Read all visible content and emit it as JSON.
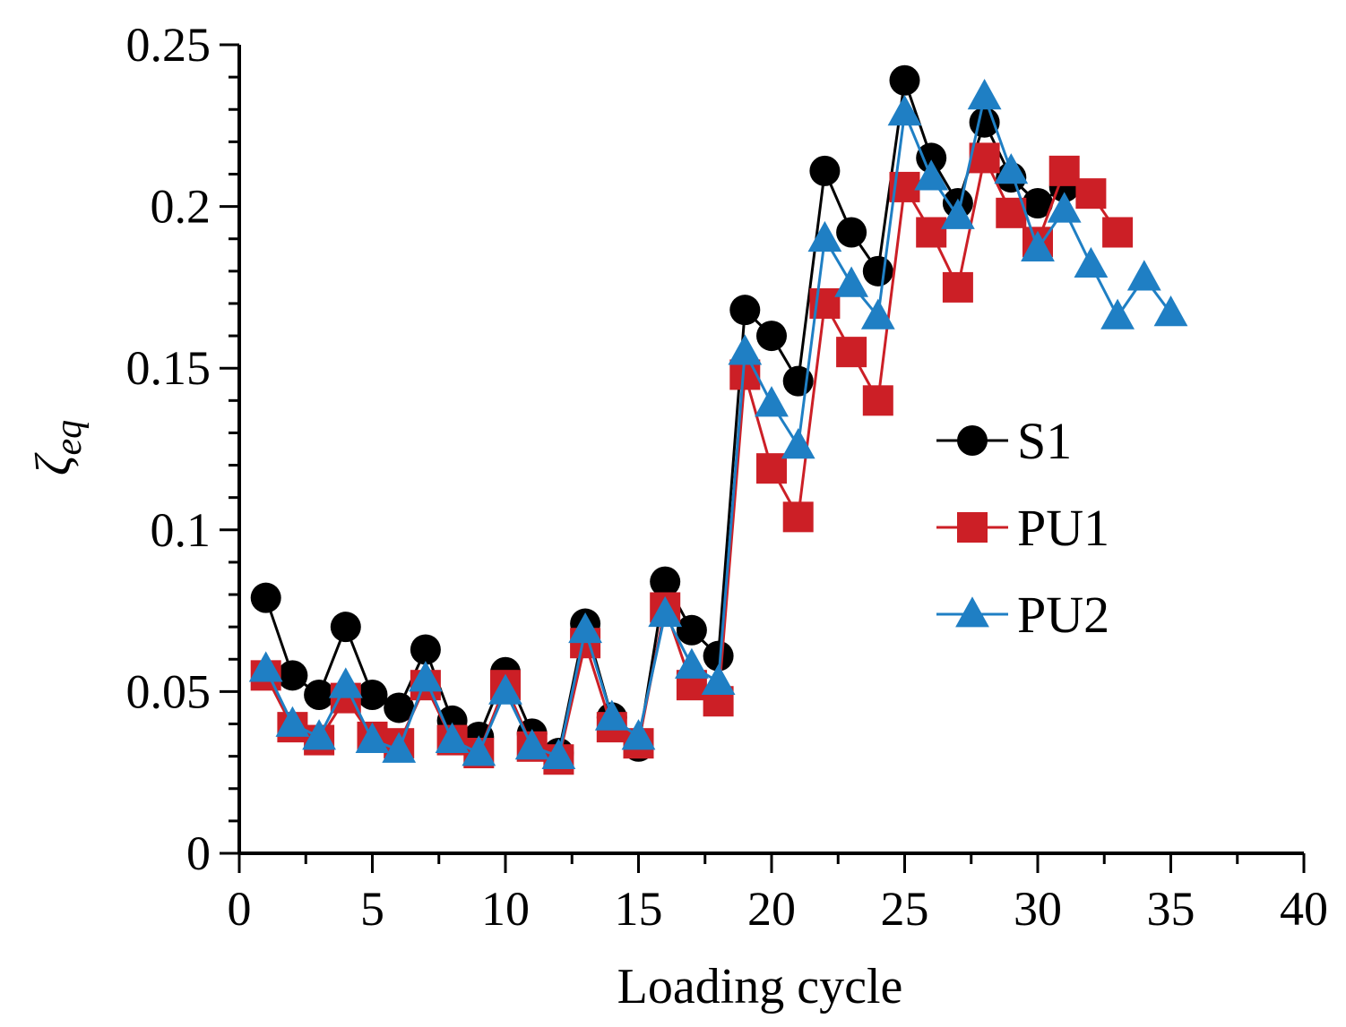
{
  "chart_data": {
    "type": "line",
    "title": "",
    "xlabel": "Loading cycle",
    "ylabel": "ζ",
    "ylabel_subscript": "eq",
    "xlim": [
      0,
      40
    ],
    "ylim": [
      0,
      0.25
    ],
    "x_ticks": [
      "0",
      "5",
      "10",
      "15",
      "20",
      "25",
      "30",
      "35",
      "40"
    ],
    "y_ticks": [
      "0",
      "0.05",
      "0.1",
      "0.15",
      "0.2",
      "0.25"
    ],
    "x_tick_values": [
      0,
      5,
      10,
      15,
      20,
      25,
      30,
      35,
      40
    ],
    "y_tick_values": [
      0,
      0.05,
      0.1,
      0.15,
      0.2,
      0.25
    ],
    "legend_position": "right-middle",
    "grid": false,
    "series": [
      {
        "name": "S1",
        "marker": "circle",
        "color": "#000000",
        "x": [
          1,
          2,
          3,
          4,
          5,
          6,
          7,
          8,
          9,
          10,
          11,
          12,
          13,
          14,
          15,
          16,
          17,
          18,
          19,
          20,
          21,
          22,
          23,
          24,
          25,
          26,
          27,
          28,
          29,
          30,
          31
        ],
        "values": [
          0.079,
          0.055,
          0.049,
          0.07,
          0.049,
          0.045,
          0.063,
          0.041,
          0.036,
          0.056,
          0.037,
          0.031,
          0.071,
          0.042,
          0.033,
          0.084,
          0.069,
          0.061,
          0.168,
          0.16,
          0.146,
          0.211,
          0.192,
          0.18,
          0.239,
          0.215,
          0.201,
          0.226,
          0.209,
          0.201,
          0.206
        ]
      },
      {
        "name": "PU1",
        "marker": "square",
        "color": "#cc1f26",
        "x": [
          1,
          2,
          3,
          4,
          5,
          6,
          7,
          8,
          9,
          10,
          11,
          12,
          13,
          14,
          15,
          16,
          17,
          18,
          19,
          20,
          21,
          22,
          23,
          24,
          25,
          26,
          27,
          28,
          29,
          30,
          31,
          32,
          33
        ],
        "values": [
          0.055,
          0.039,
          0.035,
          0.048,
          0.036,
          0.034,
          0.052,
          0.035,
          0.031,
          0.052,
          0.033,
          0.029,
          0.065,
          0.039,
          0.034,
          0.076,
          0.052,
          0.047,
          0.148,
          0.119,
          0.104,
          0.17,
          0.155,
          0.14,
          0.206,
          0.192,
          0.175,
          0.215,
          0.198,
          0.189,
          0.211,
          0.204,
          0.192
        ]
      },
      {
        "name": "PU2",
        "marker": "triangle",
        "color": "#1f7fc4",
        "x": [
          1,
          2,
          3,
          4,
          5,
          6,
          7,
          8,
          9,
          10,
          11,
          12,
          13,
          14,
          15,
          16,
          17,
          18,
          19,
          20,
          21,
          22,
          23,
          24,
          25,
          26,
          27,
          28,
          29,
          30,
          31,
          32,
          33,
          34,
          35
        ],
        "values": [
          0.057,
          0.04,
          0.036,
          0.052,
          0.035,
          0.032,
          0.054,
          0.035,
          0.031,
          0.05,
          0.033,
          0.03,
          0.069,
          0.042,
          0.036,
          0.074,
          0.058,
          0.053,
          0.155,
          0.139,
          0.126,
          0.19,
          0.176,
          0.166,
          0.229,
          0.209,
          0.197,
          0.234,
          0.211,
          0.187,
          0.199,
          0.182,
          0.166,
          0.178,
          0.167
        ]
      }
    ]
  }
}
